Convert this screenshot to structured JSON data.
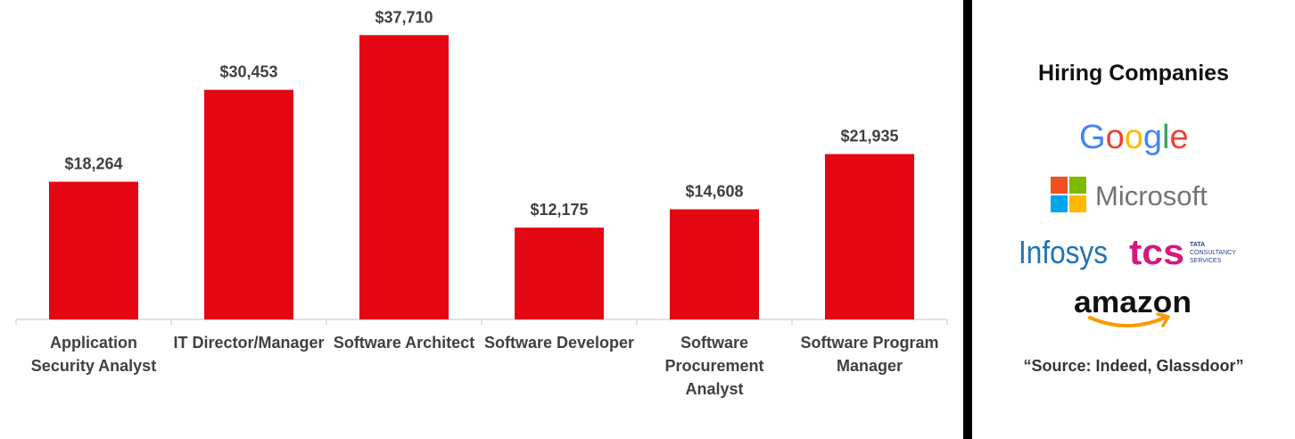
{
  "chart_data": {
    "type": "bar",
    "categories": [
      [
        "Application",
        "Security Analyst"
      ],
      [
        "IT Director/Manager"
      ],
      [
        "Software Architect"
      ],
      [
        "Software Developer"
      ],
      [
        "Software",
        "Procurement",
        "Analyst"
      ],
      [
        "Software Program",
        "Manager"
      ]
    ],
    "values": [
      18264,
      30453,
      37710,
      12175,
      14608,
      21935
    ],
    "value_labels": [
      "$18,264",
      "$30,453",
      "$37,710",
      "$12,175",
      "$14,608",
      "$21,935"
    ],
    "title": "",
    "xlabel": "",
    "ylabel": "",
    "ylim": [
      0,
      40000
    ],
    "grid": false,
    "legend": "none",
    "bar_color": "#e30613"
  },
  "side_panel": {
    "title": "Hiring Companies",
    "logos": {
      "google": "Google",
      "microsoft": "Microsoft",
      "infosys": "Infosys",
      "tcs": "tcs",
      "tcs_sub": [
        "TATA",
        "CONSULTANCY",
        "SERVICES"
      ],
      "amazon": "amazon"
    },
    "source": "“Source: Indeed, Glassdoor”"
  },
  "colors": {
    "bar": "#e30613",
    "google_blue": "#4285F4",
    "google_red": "#EA4335",
    "google_yellow": "#FBBC05",
    "google_green": "#34A853",
    "ms_red": "#F25022",
    "ms_green": "#7FBA00",
    "ms_blue": "#00A4EF",
    "ms_yellow": "#FFB900",
    "infosys_blue": "#1e73b8",
    "tcs_magenta": "#d6177f",
    "tcs_blue": "#2b3c8f",
    "amazon_orange": "#ff9900"
  }
}
